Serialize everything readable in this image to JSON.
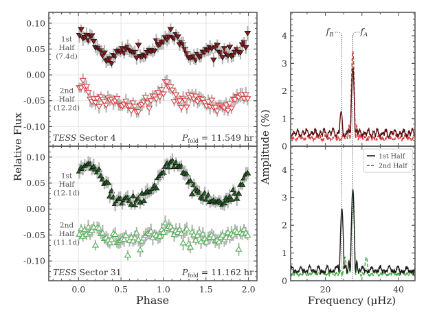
{
  "chart_data": [
    {
      "panel": "top-left",
      "type": "scatter",
      "title": "",
      "xlabel": "Phase",
      "ylabel": "Relative Flux",
      "xlim": [
        -0.35,
        2.1
      ],
      "ylim": [
        -0.138,
        0.121
      ],
      "xticks": [
        "0.0",
        "0.5",
        "1.0",
        "1.5",
        "2.0"
      ],
      "xtick_values": [
        0.0,
        0.5,
        1.0,
        1.5,
        2.0
      ],
      "yticks": [
        "0.10",
        "0.05",
        "0.00",
        "-0.05",
        "-0.10"
      ],
      "ytick_values": [
        0.1,
        0.05,
        0.0,
        -0.05,
        -0.1
      ],
      "grid": true,
      "annotation_left": {
        "italic": "TESS",
        "text": " Sector 4"
      },
      "annotation_right": {
        "symbol": "P",
        "subscript": "fold",
        "text": " = 11.549 hr"
      },
      "series": [
        {
          "name": "1st Half",
          "label_lines": [
            "1st",
            "Half",
            "(7.4d)"
          ],
          "marker": "triangle-down-filled",
          "color": "#8b1a1a",
          "offset": 0.05,
          "amplitude": 0.022,
          "mean": 0.05,
          "description": "double-humped modulation, maxima near phase 0.05, 0.6, 1.05, 1.6; minima near 0.3, 0.8, 1.3, 1.8"
        },
        {
          "name": "2nd Half",
          "label_lines": [
            "2nd",
            "Half",
            "(12.2d)"
          ],
          "marker": "triangle-down-open",
          "color": "#d9383a",
          "mean": -0.05,
          "amplitude": 0.012,
          "description": "low amplitude modulation around -0.05, peaks near phase 0.05, 1.05"
        }
      ]
    },
    {
      "panel": "bottom-left",
      "type": "scatter",
      "xlabel": "Phase",
      "ylabel": "Relative Flux",
      "xlim": [
        -0.35,
        2.1
      ],
      "ylim": [
        -0.138,
        0.121
      ],
      "xticks": [
        "0.0",
        "0.5",
        "1.0",
        "1.5",
        "2.0"
      ],
      "xtick_values": [
        0.0,
        0.5,
        1.0,
        1.5,
        2.0
      ],
      "yticks": [
        "0.10",
        "0.05",
        "0.00",
        "-0.05",
        "-0.10"
      ],
      "ytick_values": [
        0.1,
        0.05,
        0.0,
        -0.05,
        -0.1
      ],
      "grid": true,
      "annotation_left": {
        "italic": "TESS",
        "text": " Sector 31"
      },
      "annotation_right": {
        "symbol": "P",
        "subscript": "fold",
        "text": " = 11.162 hr"
      },
      "series": [
        {
          "name": "1st Half",
          "label_lines": [
            "1st",
            "Half",
            "(12.1d)"
          ],
          "marker": "triangle-up-filled",
          "color": "#1f5e1f",
          "mean": 0.045,
          "amplitude": 0.035,
          "description": "broad maxima near phase 0.1 and 1.1 (~0.08), minima near 0.7 and 1.7 (~0.01)"
        },
        {
          "name": "2nd Half",
          "label_lines": [
            "2nd",
            "Half",
            "(11.1d)"
          ],
          "marker": "triangle-up-open",
          "color": "#4caf50",
          "mean": -0.05,
          "amplitude": 0.012,
          "description": "noisy scatter around -0.05, low points near -0.09 at phase 0.6 and 1.6"
        }
      ]
    },
    {
      "panel": "top-right",
      "type": "line",
      "xlabel": "Frequency (μHz)",
      "ylabel": "Amplitude (%)",
      "xlim": [
        10.5,
        44.5
      ],
      "ylim": [
        0,
        4.85
      ],
      "xticks": [
        "20",
        "40"
      ],
      "xtick_values": [
        20,
        40
      ],
      "yticks": [
        "0",
        "1",
        "2",
        "3",
        "4"
      ],
      "ytick_values": [
        0,
        1,
        2,
        3,
        4
      ],
      "markers": [
        {
          "label": "f_B",
          "x": 24.5
        },
        {
          "label": "f_A",
          "x": 27.5
        }
      ],
      "series": [
        {
          "name": "1st Half",
          "style": "solid",
          "color": "#5a1010",
          "peaks": [
            {
              "x": 24.3,
              "y": 1.25
            },
            {
              "x": 27.5,
              "y": 2.85
            }
          ],
          "noise_level": 0.55
        },
        {
          "name": "2nd Half",
          "style": "dashed",
          "color": "#d9383a",
          "peaks": [
            {
              "x": 27.5,
              "y": 3.45
            }
          ],
          "noise_level": 0.35
        }
      ]
    },
    {
      "panel": "bottom-right",
      "type": "line",
      "xlabel": "Frequency (μHz)",
      "ylabel": "Amplitude (%)",
      "xlim": [
        10.5,
        44.5
      ],
      "ylim": [
        0,
        4.85
      ],
      "xticks": [
        "20",
        "40"
      ],
      "xtick_values": [
        20,
        40
      ],
      "yticks": [
        "0",
        "1",
        "2",
        "3",
        "4"
      ],
      "ytick_values": [
        0,
        1,
        2,
        3,
        4
      ],
      "legend": {
        "placement": "top-right",
        "entries": [
          "1st Half",
          "2nd Half"
        ]
      },
      "series": [
        {
          "name": "1st Half",
          "style": "solid",
          "color": "#1a1a1a",
          "peaks": [
            {
              "x": 24.5,
              "y": 2.6
            },
            {
              "x": 27.5,
              "y": 3.3
            }
          ],
          "noise_level": 0.45
        },
        {
          "name": "2nd Half",
          "style": "dashed",
          "color": "#3fae3f",
          "peaks": [
            {
              "x": 27.5,
              "y": 3.2
            },
            {
              "x": 25.3,
              "y": 0.85
            },
            {
              "x": 31.2,
              "y": 0.85
            }
          ],
          "noise_level": 0.3
        }
      ]
    }
  ],
  "labels": {
    "left_ylabel": "Relative Flux",
    "left_xlabel": "Phase",
    "right_ylabel": "Amplitude (%)",
    "right_xlabel": "Frequency (μHz)",
    "fB": "f",
    "fB_sub": "B",
    "fA": "f",
    "fA_sub": "A",
    "legend_1": "1st Half",
    "legend_2": "2nd Half"
  }
}
